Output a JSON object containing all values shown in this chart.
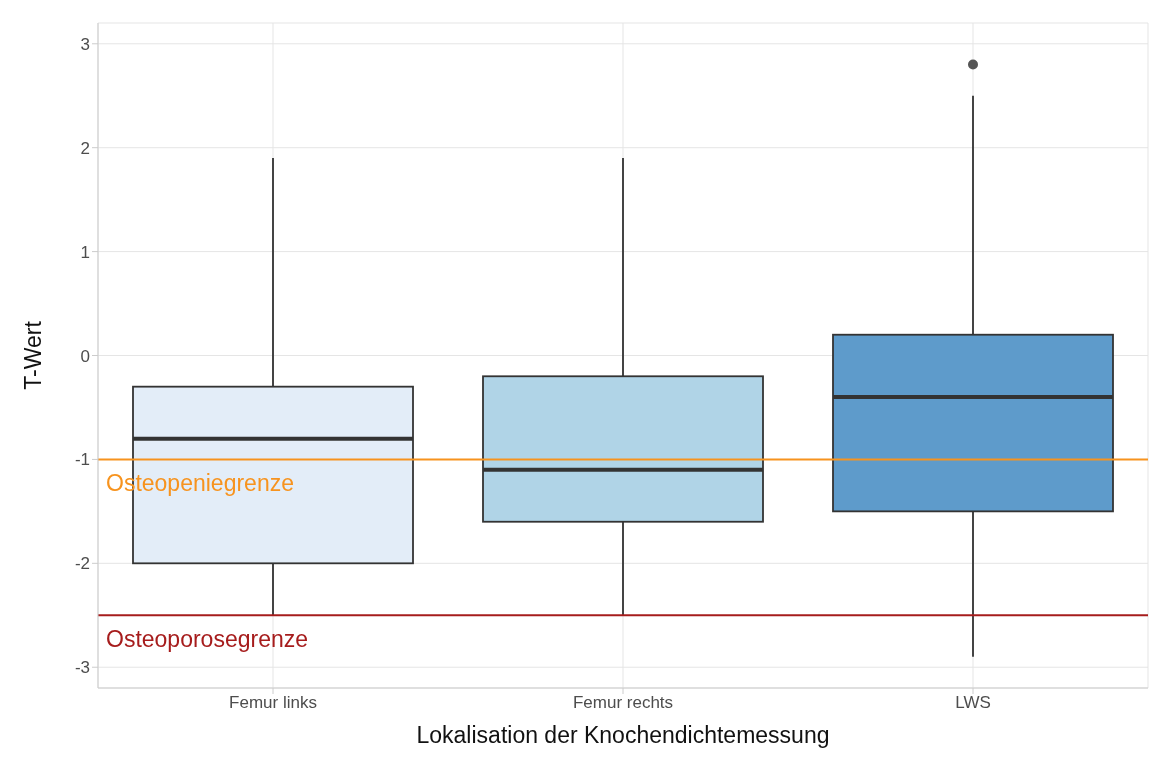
{
  "chart_data": {
    "type": "box",
    "xlabel": "Lokalisation der Knochendichtemessung",
    "ylabel": "T-Wert",
    "categories": [
      "Femur links",
      "Femur rechts",
      "LWS"
    ],
    "colors": [
      "#e3edf8",
      "#b0d4e7",
      "#5e9bcb"
    ],
    "boxes": [
      {
        "low": -2.5,
        "q1": -2.0,
        "median": -0.8,
        "q3": -0.3,
        "high": 1.9
      },
      {
        "low": -2.5,
        "q1": -1.6,
        "median": -1.1,
        "q3": -0.2,
        "high": 1.9
      },
      {
        "low": -2.9,
        "q1": -1.5,
        "median": -0.4,
        "q3": 0.2,
        "high": 2.5,
        "outliers": [
          2.8
        ]
      }
    ],
    "ylim": [
      -3.2,
      3.2
    ],
    "yticks": [
      -3,
      -2,
      -1,
      0,
      1,
      2,
      3
    ],
    "grid": true,
    "ref_lines": [
      {
        "axis": "y",
        "value": -1,
        "label": "Osteopeniegrenze",
        "color": "#f7931e"
      },
      {
        "axis": "y",
        "value": -2.5,
        "label": "Osteoporosegrenze",
        "color": "#a61c1c"
      }
    ]
  }
}
